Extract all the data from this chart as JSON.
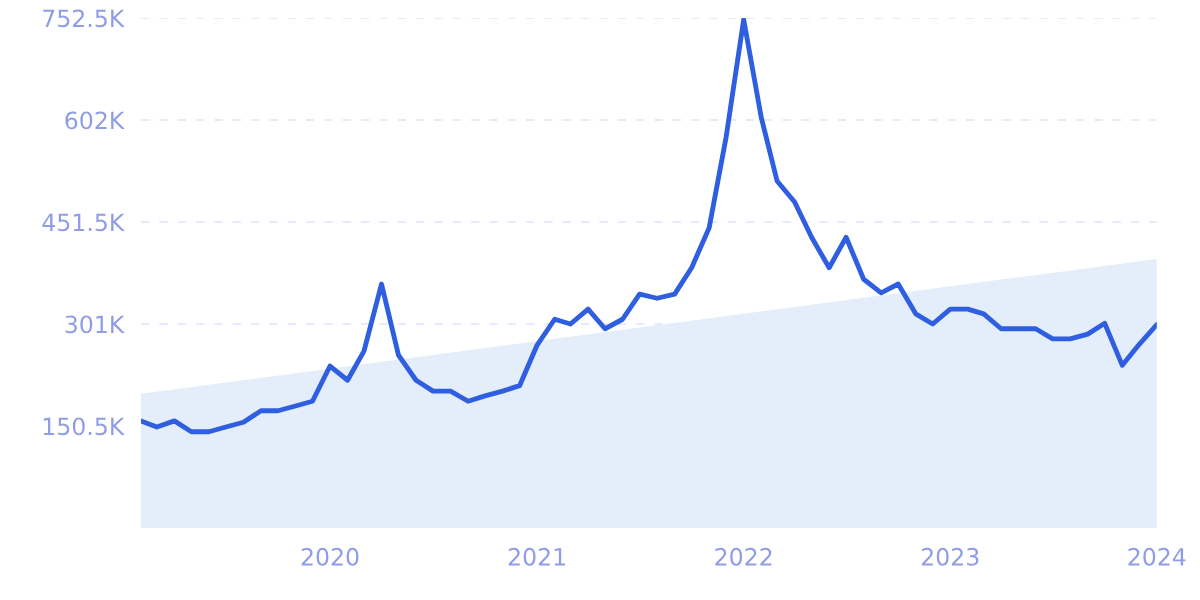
{
  "chart_data": {
    "type": "line",
    "x": [
      "2019-02",
      "2019-03",
      "2019-04",
      "2019-05",
      "2019-06",
      "2019-07",
      "2019-08",
      "2019-09",
      "2019-10",
      "2019-11",
      "2019-12",
      "2020-01",
      "2020-02",
      "2020-03",
      "2020-04",
      "2020-05",
      "2020-06",
      "2020-07",
      "2020-08",
      "2020-09",
      "2020-10",
      "2020-11",
      "2020-12",
      "2021-01",
      "2021-02",
      "2021-03",
      "2021-04",
      "2021-05",
      "2021-06",
      "2021-07",
      "2021-08",
      "2021-09",
      "2021-10",
      "2021-11",
      "2021-12",
      "2022-01",
      "2022-02",
      "2022-03",
      "2022-04",
      "2022-05",
      "2022-06",
      "2022-07",
      "2022-08",
      "2022-09",
      "2022-10",
      "2022-11",
      "2022-12",
      "2023-01",
      "2023-02",
      "2023-03",
      "2023-04",
      "2023-05",
      "2023-06",
      "2023-07",
      "2023-08",
      "2023-09",
      "2023-10",
      "2023-11",
      "2023-12",
      "2024-01"
    ],
    "series": [
      {
        "type": "area",
        "color": "#e4eefb",
        "x": [
          "2019-02",
          "2024-01"
        ],
        "values": [
          198000,
          397000
        ]
      },
      {
        "color": "#2f5fe0",
        "values": [
          158000,
          149000,
          158000,
          142000,
          142000,
          149000,
          156000,
          173000,
          173000,
          180000,
          187000,
          239000,
          218000,
          261000,
          360000,
          255000,
          218000,
          202000,
          202000,
          187000,
          195000,
          202000,
          210000,
          270000,
          308000,
          301000,
          323000,
          294000,
          308000,
          345000,
          339000,
          345000,
          384000,
          443000,
          577000,
          750000,
          606000,
          512000,
          481000,
          429000,
          384000,
          429000,
          367000,
          347000,
          360000,
          316000,
          301000,
          323000,
          323000,
          316000,
          294000,
          294000,
          294000,
          279000,
          279000,
          286000,
          302000,
          240000,
          271000,
          300000
        ]
      }
    ],
    "xlim": [
      "2019-02",
      "2024-01"
    ],
    "xticks": [
      {
        "value": "2020",
        "label": "2020"
      },
      {
        "value": "2021",
        "label": "2021"
      },
      {
        "value": "2022",
        "label": "2022"
      },
      {
        "value": "2023",
        "label": "2023"
      },
      {
        "value": "2024",
        "label": "2024"
      }
    ],
    "ylim": [
      0,
      752500
    ],
    "yticks": [
      {
        "value": 150500,
        "label": "150.5K"
      },
      {
        "value": 301000,
        "label": "301K"
      },
      {
        "value": 451500,
        "label": "451.5K"
      },
      {
        "value": 602000,
        "label": "602K"
      },
      {
        "value": 752500,
        "label": "752.5K"
      }
    ],
    "grid": "y"
  }
}
